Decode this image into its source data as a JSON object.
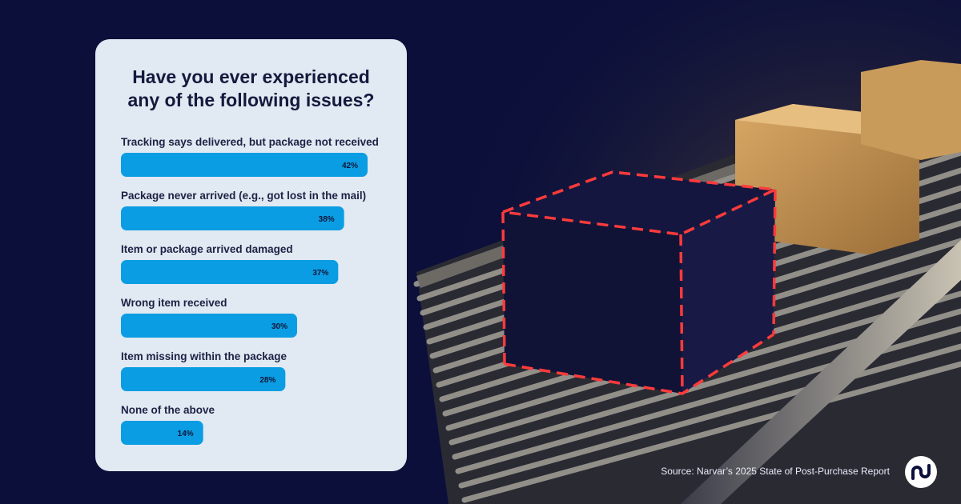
{
  "chart_data": {
    "type": "bar",
    "orientation": "horizontal",
    "title": "Have you ever experienced any of the following issues?",
    "categories": [
      "Tracking says delivered, but package not received",
      "Package never arrived (e.g., got lost in the mail)",
      "Item or package arrived damaged",
      "Wrong item received",
      "Item missing within the package",
      "None of the above"
    ],
    "values": [
      42,
      38,
      37,
      30,
      28,
      14
    ],
    "value_labels": [
      "42%",
      "38%",
      "37%",
      "30%",
      "28%",
      "14%"
    ],
    "unit": "%",
    "grid": false,
    "legend": "none",
    "bar_color": "#0a9de3"
  },
  "footer": {
    "source": "Source: Narvar’s 2025 State of Post-Purchase Report"
  },
  "logo": {
    "icon": "narvar-logo-icon",
    "color": "#0b0f3a"
  },
  "colors": {
    "background": "#0b0f3a",
    "card": "#e1e9f2",
    "title_text": "#141a3d",
    "highlight_dash": "#ff3b3b"
  }
}
